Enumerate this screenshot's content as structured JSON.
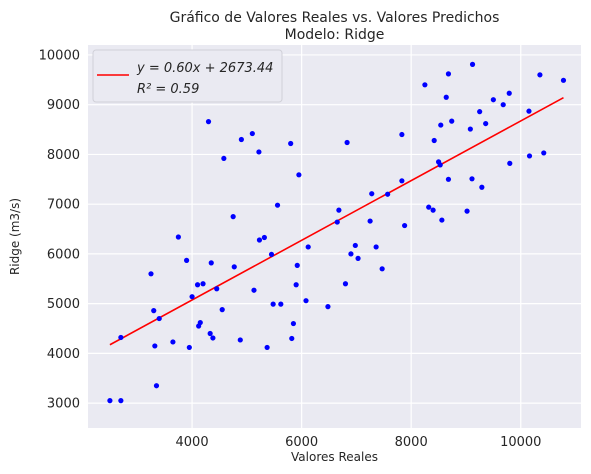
{
  "chart_data": {
    "type": "scatter",
    "title": "Gráfico de Valores Reales vs. Valores Predichos",
    "subtitle": "Modelo: Ridge",
    "xlabel": "Valores Reales",
    "ylabel": "Ridge (m3/s)",
    "xlim": [
      2100,
      11100
    ],
    "ylim": [
      2500,
      10200
    ],
    "xticks": [
      4000,
      6000,
      8000,
      10000
    ],
    "yticks": [
      3000,
      4000,
      5000,
      6000,
      7000,
      8000,
      9000,
      10000
    ],
    "grid": true,
    "legend_position": "top-left",
    "colors": {
      "background": "#eaeaf2",
      "grid": "#ffffff",
      "points": "#0000ff",
      "fit_line": "#ff0000"
    },
    "fit": {
      "slope": 0.6,
      "intercept": 2673.44,
      "x_range": [
        2500,
        10780
      ],
      "equation_label": "y = 0.60x + 2673.44",
      "r2_label": "R² = 0.59"
    },
    "points": [
      {
        "x": 2500,
        "y": 3050
      },
      {
        "x": 2700,
        "y": 3050
      },
      {
        "x": 2700,
        "y": 4320
      },
      {
        "x": 3250,
        "y": 5600
      },
      {
        "x": 3300,
        "y": 4860
      },
      {
        "x": 3320,
        "y": 4150
      },
      {
        "x": 3350,
        "y": 3350
      },
      {
        "x": 3400,
        "y": 4700
      },
      {
        "x": 3650,
        "y": 4230
      },
      {
        "x": 3750,
        "y": 6340
      },
      {
        "x": 3900,
        "y": 5870
      },
      {
        "x": 3950,
        "y": 4120
      },
      {
        "x": 4000,
        "y": 5140
      },
      {
        "x": 4100,
        "y": 5380
      },
      {
        "x": 4120,
        "y": 4550
      },
      {
        "x": 4150,
        "y": 4620
      },
      {
        "x": 4200,
        "y": 5400
      },
      {
        "x": 4300,
        "y": 8660
      },
      {
        "x": 4330,
        "y": 4400
      },
      {
        "x": 4350,
        "y": 5820
      },
      {
        "x": 4380,
        "y": 4310
      },
      {
        "x": 4450,
        "y": 5300
      },
      {
        "x": 4550,
        "y": 4880
      },
      {
        "x": 4580,
        "y": 7920
      },
      {
        "x": 4750,
        "y": 6750
      },
      {
        "x": 4770,
        "y": 5740
      },
      {
        "x": 4880,
        "y": 4270
      },
      {
        "x": 4900,
        "y": 8300
      },
      {
        "x": 5100,
        "y": 8420
      },
      {
        "x": 5130,
        "y": 5270
      },
      {
        "x": 5220,
        "y": 8050
      },
      {
        "x": 5230,
        "y": 6280
      },
      {
        "x": 5320,
        "y": 6330
      },
      {
        "x": 5370,
        "y": 4120
      },
      {
        "x": 5450,
        "y": 5990
      },
      {
        "x": 5480,
        "y": 4990
      },
      {
        "x": 5560,
        "y": 6980
      },
      {
        "x": 5620,
        "y": 4990
      },
      {
        "x": 5800,
        "y": 8220
      },
      {
        "x": 5820,
        "y": 4300
      },
      {
        "x": 5850,
        "y": 4600
      },
      {
        "x": 5900,
        "y": 5380
      },
      {
        "x": 5920,
        "y": 5770
      },
      {
        "x": 5950,
        "y": 7590
      },
      {
        "x": 6080,
        "y": 5060
      },
      {
        "x": 6120,
        "y": 6140
      },
      {
        "x": 6480,
        "y": 4940
      },
      {
        "x": 6650,
        "y": 6640
      },
      {
        "x": 6680,
        "y": 6880
      },
      {
        "x": 6800,
        "y": 5400
      },
      {
        "x": 6830,
        "y": 8240
      },
      {
        "x": 6900,
        "y": 6000
      },
      {
        "x": 6980,
        "y": 6170
      },
      {
        "x": 7030,
        "y": 5910
      },
      {
        "x": 7250,
        "y": 6660
      },
      {
        "x": 7280,
        "y": 7210
      },
      {
        "x": 7360,
        "y": 6140
      },
      {
        "x": 7470,
        "y": 5700
      },
      {
        "x": 7570,
        "y": 7200
      },
      {
        "x": 7830,
        "y": 7470
      },
      {
        "x": 7830,
        "y": 8400
      },
      {
        "x": 7880,
        "y": 6570
      },
      {
        "x": 8250,
        "y": 9400
      },
      {
        "x": 8320,
        "y": 6940
      },
      {
        "x": 8400,
        "y": 6880
      },
      {
        "x": 8420,
        "y": 8280
      },
      {
        "x": 8500,
        "y": 7850
      },
      {
        "x": 8530,
        "y": 7790
      },
      {
        "x": 8540,
        "y": 8590
      },
      {
        "x": 8560,
        "y": 6680
      },
      {
        "x": 8640,
        "y": 9150
      },
      {
        "x": 8680,
        "y": 9620
      },
      {
        "x": 8680,
        "y": 7500
      },
      {
        "x": 8740,
        "y": 8670
      },
      {
        "x": 9020,
        "y": 6860
      },
      {
        "x": 9080,
        "y": 8510
      },
      {
        "x": 9110,
        "y": 7510
      },
      {
        "x": 9120,
        "y": 9810
      },
      {
        "x": 9250,
        "y": 8860
      },
      {
        "x": 9290,
        "y": 7340
      },
      {
        "x": 9360,
        "y": 8620
      },
      {
        "x": 9500,
        "y": 9100
      },
      {
        "x": 9680,
        "y": 9000
      },
      {
        "x": 9790,
        "y": 9230
      },
      {
        "x": 9800,
        "y": 7820
      },
      {
        "x": 10150,
        "y": 8870
      },
      {
        "x": 10160,
        "y": 7970
      },
      {
        "x": 10350,
        "y": 9600
      },
      {
        "x": 10420,
        "y": 8030
      },
      {
        "x": 10780,
        "y": 9490
      }
    ]
  }
}
